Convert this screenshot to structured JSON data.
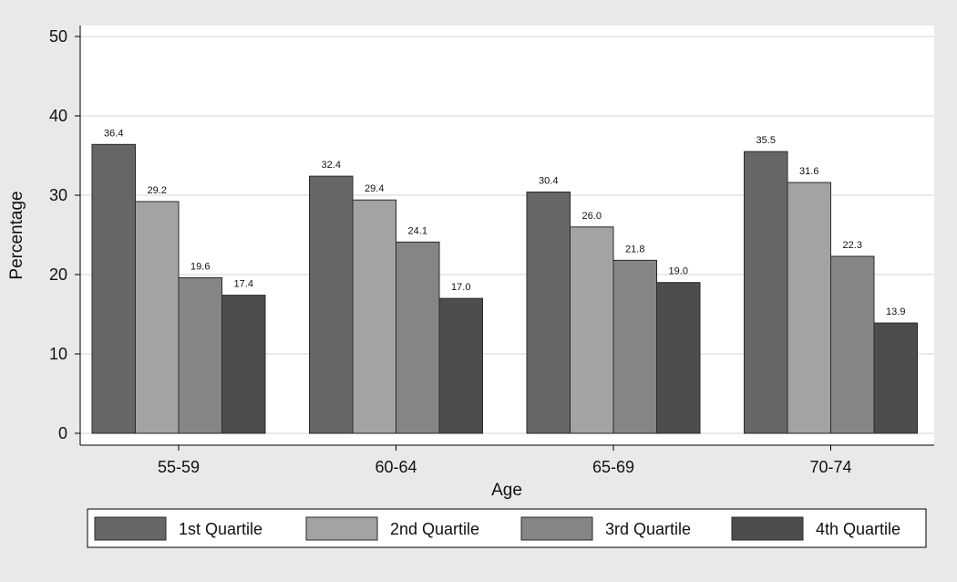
{
  "chart_data": {
    "type": "bar",
    "xlabel": "Age",
    "ylabel": "Percentage",
    "ylim": [
      0,
      50
    ],
    "yticks": [
      0,
      10,
      20,
      30,
      40,
      50
    ],
    "grid": true,
    "legend_position": "bottom",
    "categories": [
      "55-59",
      "60-64",
      "65-69",
      "70-74"
    ],
    "series": [
      {
        "name": "1st Quartile",
        "color": "#666666",
        "values": [
          36.4,
          32.4,
          30.4,
          35.5
        ],
        "labels": [
          "36.4",
          "32.4",
          "30.4",
          "35.5"
        ]
      },
      {
        "name": "2nd Quartile",
        "color": "#a3a3a3",
        "values": [
          29.2,
          29.4,
          26.0,
          31.6
        ],
        "labels": [
          "29.2",
          "29.4",
          "26.0",
          "31.6"
        ]
      },
      {
        "name": "3rd Quartile",
        "color": "#858585",
        "values": [
          19.6,
          24.1,
          21.8,
          22.3
        ],
        "labels": [
          "19.6",
          "24.1",
          "21.8",
          "22.3"
        ]
      },
      {
        "name": "4th Quartile",
        "color": "#4d4d4d",
        "values": [
          17.4,
          17.0,
          19.0,
          13.9
        ],
        "labels": [
          "17.4",
          "17.0",
          "19.0",
          "13.9"
        ]
      }
    ]
  }
}
